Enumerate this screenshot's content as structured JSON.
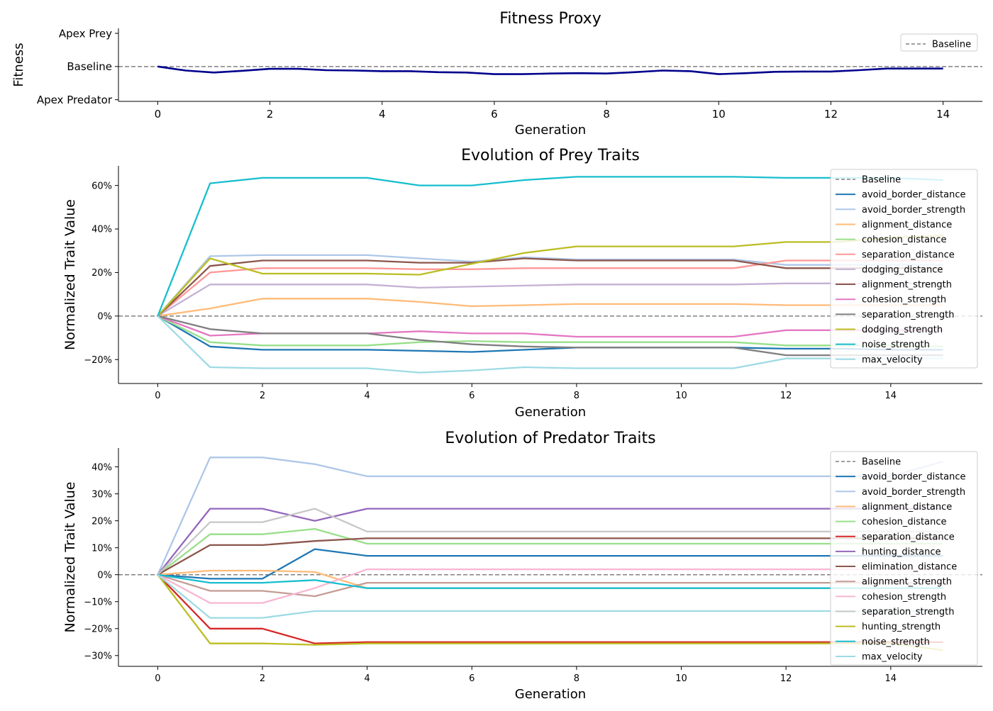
{
  "figure": {
    "background": "#ffffff"
  },
  "chart_data": [
    {
      "id": "fitness",
      "type": "line",
      "title": "Fitness Proxy",
      "xlabel": "Generation",
      "ylabel": "Fitness",
      "xlim": [
        -0.7,
        14.7
      ],
      "ylim": [
        -1.05,
        1.15
      ],
      "xticks": [
        0,
        2,
        4,
        6,
        8,
        10,
        12,
        14
      ],
      "xtick_labels": [
        "0",
        "2",
        "4",
        "6",
        "8",
        "10",
        "12",
        "14"
      ],
      "yticks": [
        -1,
        0,
        1
      ],
      "ytick_labels": [
        "Apex Predator",
        "Baseline",
        "Apex Prey"
      ],
      "grid": false,
      "legend": {
        "position": "upper right",
        "entries": [
          "Baseline"
        ]
      },
      "baseline": {
        "name": "Baseline",
        "y": 0,
        "color": "#808080",
        "dashed": true
      },
      "series": [
        {
          "color": "#00008b",
          "x": [
            0,
            0.5,
            1,
            1.5,
            2,
            2.5,
            3,
            3.5,
            4,
            4.5,
            5,
            5.5,
            6,
            6.5,
            7,
            7.5,
            8,
            8.5,
            9,
            9.5,
            10,
            10.5,
            11,
            11.5,
            12,
            12.5,
            13,
            13.5,
            14
          ],
          "y": [
            0,
            -0.12,
            -0.18,
            -0.13,
            -0.07,
            -0.07,
            -0.11,
            -0.12,
            -0.14,
            -0.14,
            -0.17,
            -0.18,
            -0.23,
            -0.23,
            -0.21,
            -0.2,
            -0.21,
            -0.17,
            -0.12,
            -0.14,
            -0.23,
            -0.2,
            -0.16,
            -0.15,
            -0.15,
            -0.11,
            -0.06,
            -0.06,
            -0.06
          ]
        }
      ]
    },
    {
      "id": "prey",
      "type": "line",
      "title": "Evolution of Prey Traits",
      "xlabel": "Generation",
      "ylabel": "Normalized Trait Value",
      "xlim": [
        -0.75,
        15.75
      ],
      "ylim": [
        -0.31,
        0.69
      ],
      "xticks": [
        0,
        2,
        4,
        6,
        8,
        10,
        12,
        14
      ],
      "xtick_labels": [
        "0",
        "2",
        "4",
        "6",
        "8",
        "10",
        "12",
        "14"
      ],
      "yticks": [
        -0.2,
        0,
        0.2,
        0.4,
        0.6
      ],
      "ytick_labels": [
        "−20%",
        "0%",
        "20%",
        "40%",
        "60%"
      ],
      "grid": false,
      "legend": {
        "position": "upper right"
      },
      "baseline": {
        "name": "Baseline",
        "y": 0,
        "color": "#808080",
        "dashed": true
      },
      "x": [
        0,
        1,
        2,
        3,
        4,
        5,
        6,
        7,
        8,
        9,
        10,
        11,
        12,
        13,
        14,
        15
      ],
      "series": [
        {
          "name": "avoid_border_distance",
          "color": "#1f77b4",
          "values": [
            0,
            -0.14,
            -0.155,
            -0.155,
            -0.155,
            -0.16,
            -0.165,
            -0.155,
            -0.145,
            -0.145,
            -0.145,
            -0.145,
            -0.15,
            -0.15,
            -0.155,
            -0.155
          ]
        },
        {
          "name": "avoid_border_strength",
          "color": "#aec7e8",
          "values": [
            0,
            0.275,
            0.28,
            0.28,
            0.28,
            0.265,
            0.25,
            0.27,
            0.26,
            0.26,
            0.26,
            0.26,
            0.235,
            0.235,
            0.235,
            0.235
          ]
        },
        {
          "name": "alignment_distance",
          "color": "#ffbb78",
          "values": [
            0,
            0.035,
            0.08,
            0.08,
            0.08,
            0.065,
            0.045,
            0.05,
            0.055,
            0.055,
            0.055,
            0.055,
            0.05,
            0.05,
            0.05,
            0.05
          ]
        },
        {
          "name": "cohesion_distance",
          "color": "#98df8a",
          "values": [
            0,
            -0.12,
            -0.135,
            -0.135,
            -0.135,
            -0.12,
            -0.115,
            -0.12,
            -0.12,
            -0.12,
            -0.12,
            -0.12,
            -0.135,
            -0.135,
            -0.135,
            -0.14
          ]
        },
        {
          "name": "separation_distance",
          "color": "#ff9896",
          "values": [
            0,
            0.2,
            0.22,
            0.22,
            0.22,
            0.215,
            0.215,
            0.22,
            0.22,
            0.22,
            0.22,
            0.22,
            0.255,
            0.255,
            0.255,
            0.255
          ]
        },
        {
          "name": "dodging_distance",
          "color": "#c5b0d5",
          "values": [
            0,
            0.145,
            0.145,
            0.145,
            0.145,
            0.13,
            0.135,
            0.14,
            0.145,
            0.145,
            0.145,
            0.145,
            0.15,
            0.15,
            0.15,
            0.15
          ]
        },
        {
          "name": "alignment_strength",
          "color": "#8c564b",
          "values": [
            0,
            0.23,
            0.255,
            0.255,
            0.255,
            0.245,
            0.245,
            0.265,
            0.255,
            0.255,
            0.255,
            0.255,
            0.22,
            0.22,
            0.22,
            0.22
          ]
        },
        {
          "name": "cohesion_strength",
          "color": "#e377c2",
          "values": [
            0,
            -0.09,
            -0.08,
            -0.08,
            -0.08,
            -0.07,
            -0.08,
            -0.08,
            -0.095,
            -0.095,
            -0.095,
            -0.095,
            -0.065,
            -0.065,
            -0.065,
            -0.065
          ]
        },
        {
          "name": "separation_strength",
          "color": "#7f7f7f",
          "values": [
            0,
            -0.06,
            -0.08,
            -0.08,
            -0.08,
            -0.11,
            -0.13,
            -0.14,
            -0.145,
            -0.145,
            -0.145,
            -0.145,
            -0.18,
            -0.18,
            -0.18,
            -0.18
          ]
        },
        {
          "name": "dodging_strength",
          "color": "#bcbd22",
          "values": [
            0,
            0.265,
            0.195,
            0.195,
            0.195,
            0.19,
            0.24,
            0.29,
            0.32,
            0.32,
            0.32,
            0.32,
            0.34,
            0.34,
            0.36,
            0.37
          ]
        },
        {
          "name": "noise_strength",
          "color": "#17becf",
          "values": [
            0,
            0.61,
            0.635,
            0.635,
            0.635,
            0.6,
            0.6,
            0.625,
            0.64,
            0.64,
            0.64,
            0.64,
            0.635,
            0.635,
            0.635,
            0.625
          ]
        },
        {
          "name": "max_velocity",
          "color": "#9edae5",
          "values": [
            0,
            -0.235,
            -0.24,
            -0.24,
            -0.24,
            -0.26,
            -0.25,
            -0.235,
            -0.24,
            -0.24,
            -0.24,
            -0.24,
            -0.195,
            -0.195,
            -0.195,
            -0.195
          ]
        }
      ]
    },
    {
      "id": "predator",
      "type": "line",
      "title": "Evolution of Predator Traits",
      "xlabel": "Generation",
      "ylabel": "Normalized Trait Value",
      "xlim": [
        -0.75,
        15.75
      ],
      "ylim": [
        -0.34,
        0.47
      ],
      "xticks": [
        0,
        2,
        4,
        6,
        8,
        10,
        12,
        14
      ],
      "xtick_labels": [
        "0",
        "2",
        "4",
        "6",
        "8",
        "10",
        "12",
        "14"
      ],
      "yticks": [
        -0.3,
        -0.2,
        -0.1,
        0,
        0.1,
        0.2,
        0.3,
        0.4
      ],
      "ytick_labels": [
        "−30%",
        "−20%",
        "−10%",
        "0%",
        "10%",
        "20%",
        "30%",
        "40%"
      ],
      "grid": false,
      "legend": {
        "position": "upper right"
      },
      "baseline": {
        "name": "Baseline",
        "y": 0,
        "color": "#808080",
        "dashed": true
      },
      "x": [
        0,
        1,
        2,
        3,
        4,
        5,
        6,
        7,
        8,
        9,
        10,
        11,
        12,
        13,
        14,
        15
      ],
      "series": [
        {
          "name": "avoid_border_distance",
          "color": "#1f77b4",
          "values": [
            0,
            -0.015,
            -0.015,
            0.095,
            0.07,
            0.07,
            0.07,
            0.07,
            0.07,
            0.07,
            0.07,
            0.07,
            0.07,
            0.07,
            0.07,
            0.07
          ]
        },
        {
          "name": "avoid_border_strength",
          "color": "#aec7e8",
          "values": [
            0,
            0.435,
            0.435,
            0.41,
            0.365,
            0.365,
            0.365,
            0.365,
            0.365,
            0.365,
            0.365,
            0.365,
            0.365,
            0.365,
            0.365,
            0.42
          ]
        },
        {
          "name": "alignment_distance",
          "color": "#ffbb78",
          "values": [
            0,
            0.015,
            0.015,
            0.01,
            -0.05,
            -0.05,
            -0.05,
            -0.05,
            -0.05,
            -0.05,
            -0.05,
            -0.05,
            -0.05,
            -0.05,
            -0.05,
            -0.05
          ]
        },
        {
          "name": "cohesion_distance",
          "color": "#98df8a",
          "values": [
            0,
            0.15,
            0.15,
            0.17,
            0.115,
            0.115,
            0.115,
            0.115,
            0.115,
            0.115,
            0.115,
            0.115,
            0.115,
            0.115,
            0.115,
            0.115
          ]
        },
        {
          "name": "separation_distance",
          "color": "#d62728",
          "values": [
            0,
            -0.2,
            -0.2,
            -0.255,
            -0.25,
            -0.25,
            -0.25,
            -0.25,
            -0.25,
            -0.25,
            -0.25,
            -0.25,
            -0.25,
            -0.25,
            -0.25,
            -0.25
          ]
        },
        {
          "name": "hunting_distance",
          "color": "#9467bd",
          "values": [
            0,
            0.245,
            0.245,
            0.2,
            0.245,
            0.245,
            0.245,
            0.245,
            0.245,
            0.245,
            0.245,
            0.245,
            0.245,
            0.245,
            0.245,
            0.245
          ]
        },
        {
          "name": "elimination_distance",
          "color": "#8c564b",
          "values": [
            0,
            0.11,
            0.11,
            0.125,
            0.135,
            0.135,
            0.135,
            0.135,
            0.135,
            0.135,
            0.135,
            0.135,
            0.135,
            0.135,
            0.135,
            0.135
          ]
        },
        {
          "name": "alignment_strength",
          "color": "#c49c94",
          "values": [
            0,
            -0.06,
            -0.06,
            -0.08,
            -0.03,
            -0.03,
            -0.03,
            -0.03,
            -0.03,
            -0.03,
            -0.03,
            -0.03,
            -0.03,
            -0.03,
            -0.03,
            -0.03
          ]
        },
        {
          "name": "cohesion_strength",
          "color": "#f7b6d2",
          "values": [
            0,
            -0.105,
            -0.105,
            -0.05,
            0.02,
            0.02,
            0.02,
            0.02,
            0.02,
            0.02,
            0.02,
            0.02,
            0.02,
            0.02,
            0.02,
            0.02
          ]
        },
        {
          "name": "separation_strength",
          "color": "#c7c7c7",
          "values": [
            0,
            0.195,
            0.195,
            0.245,
            0.16,
            0.16,
            0.16,
            0.16,
            0.16,
            0.16,
            0.16,
            0.16,
            0.16,
            0.16,
            0.16,
            0.16
          ]
        },
        {
          "name": "hunting_strength",
          "color": "#bcbd22",
          "values": [
            0,
            -0.255,
            -0.255,
            -0.26,
            -0.255,
            -0.255,
            -0.255,
            -0.255,
            -0.255,
            -0.255,
            -0.255,
            -0.255,
            -0.255,
            -0.255,
            -0.255,
            -0.28
          ]
        },
        {
          "name": "noise_strength",
          "color": "#17becf",
          "values": [
            0,
            -0.03,
            -0.03,
            -0.02,
            -0.05,
            -0.05,
            -0.05,
            -0.05,
            -0.05,
            -0.05,
            -0.05,
            -0.05,
            -0.05,
            -0.05,
            -0.05,
            -0.05
          ]
        },
        {
          "name": "max_velocity",
          "color": "#9edae5",
          "values": [
            0,
            -0.16,
            -0.16,
            -0.135,
            -0.135,
            -0.135,
            -0.135,
            -0.135,
            -0.135,
            -0.135,
            -0.135,
            -0.135,
            -0.135,
            -0.135,
            -0.135,
            -0.135
          ]
        }
      ]
    }
  ]
}
